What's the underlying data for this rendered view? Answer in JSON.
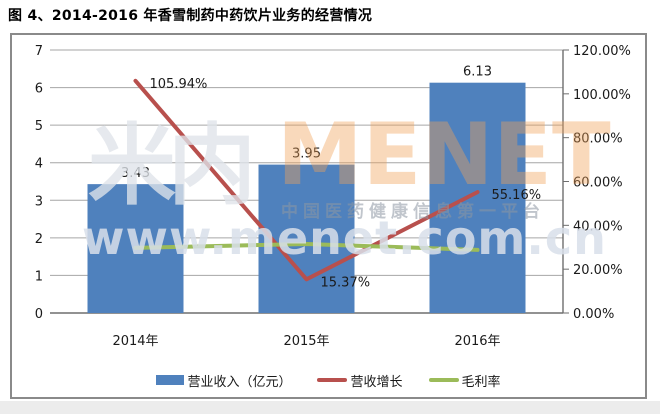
{
  "page": {
    "title": "图 4、2014-2016 年香雪制药中药饮片业务的经营情况"
  },
  "watermark": {
    "logo_text": "米内",
    "brand_text": "MENET",
    "slogan_text": "中国医药健康信息第一平台",
    "url_text": "www.menet.com.cn",
    "brand_color": "#f2a258"
  },
  "chart_data": {
    "type": "combo-bar-line",
    "categories": [
      "2014年",
      "2015年",
      "2016年"
    ],
    "series": [
      {
        "name": "营业收入（亿元）",
        "type": "bar",
        "axis": "left",
        "color": "#4f81bd",
        "values": [
          3.43,
          3.95,
          6.13
        ],
        "point_labels": [
          "3.43",
          "3.95",
          "6.13"
        ]
      },
      {
        "name": "营收增长",
        "type": "line",
        "axis": "right",
        "color": "#b8504d",
        "values": [
          105.94,
          15.37,
          55.16
        ],
        "point_labels": [
          "105.94%",
          "15.37%",
          "55.16%"
        ]
      },
      {
        "name": "毛利率",
        "type": "line",
        "axis": "right",
        "color": "#9bbb59",
        "values": [
          29.7,
          31.5,
          28.8
        ],
        "point_labels": null
      }
    ],
    "left_axis": {
      "min": 0,
      "max": 7,
      "step": 1,
      "tick_labels": [
        "0",
        "1",
        "2",
        "3",
        "4",
        "5",
        "6",
        "7"
      ]
    },
    "right_axis": {
      "min": 0,
      "max": 120,
      "step": 20,
      "tick_labels": [
        "0.00%",
        "20.00%",
        "40.00%",
        "60.00%",
        "80.00%",
        "100.00%",
        "120.00%"
      ]
    },
    "grid": true,
    "legend_position": "bottom"
  }
}
